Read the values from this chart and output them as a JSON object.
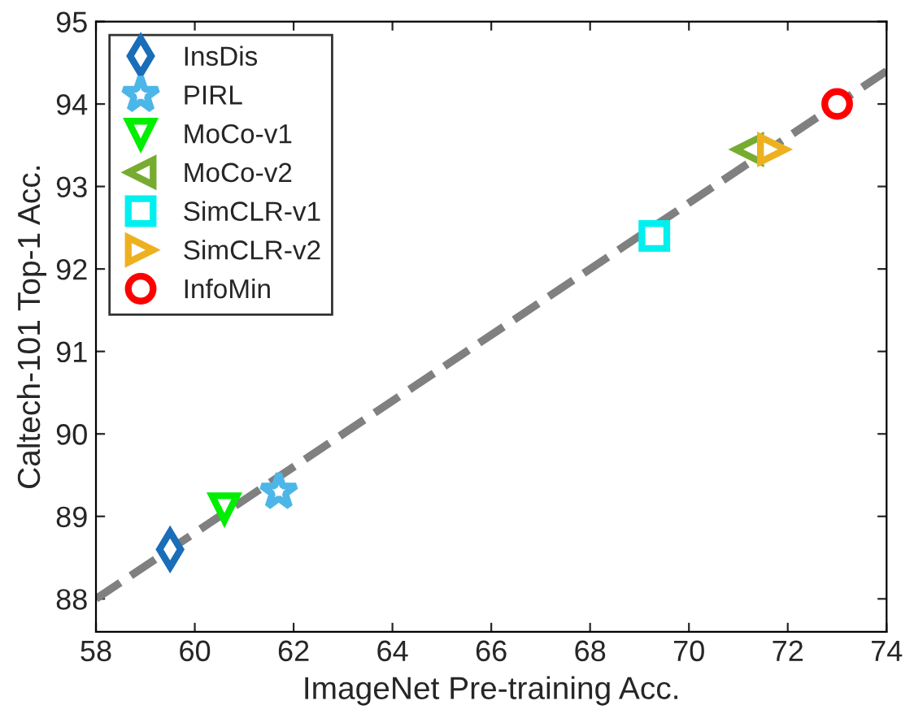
{
  "chart_data": {
    "type": "scatter",
    "xlabel": "ImageNet Pre-training Acc.",
    "ylabel": "Caltech-101 Top-1 Acc.",
    "xlim": [
      58,
      74
    ],
    "xticks": [
      58,
      60,
      62,
      64,
      66,
      68,
      70,
      72,
      74
    ],
    "ylim": [
      87.6,
      95
    ],
    "yticks": [
      88,
      89,
      90,
      91,
      92,
      93,
      94,
      95
    ],
    "grid": false,
    "legend": "top left",
    "series": [
      {
        "name": "InsDis",
        "color": "#1a6db8",
        "marker": "diamond",
        "x": [
          59.5
        ],
        "values": [
          88.6
        ]
      },
      {
        "name": "PIRL",
        "color": "#4db6e8",
        "marker": "star",
        "x": [
          61.7
        ],
        "values": [
          89.3
        ]
      },
      {
        "name": "MoCo-v1",
        "color": "#00ee00",
        "marker": "triangle-down",
        "x": [
          60.6
        ],
        "values": [
          89.1
        ]
      },
      {
        "name": "MoCo-v2",
        "color": "#77ac30",
        "marker": "triangle-left",
        "x": [
          71.2
        ],
        "values": [
          93.45
        ]
      },
      {
        "name": "SimCLR-v1",
        "color": "#00f0f0",
        "marker": "square",
        "x": [
          69.3
        ],
        "values": [
          92.4
        ]
      },
      {
        "name": "SimCLR-v2",
        "color": "#edb120",
        "marker": "triangle-right",
        "x": [
          71.7
        ],
        "values": [
          93.45
        ]
      },
      {
        "name": "InfoMin",
        "color": "#ff0000",
        "marker": "circle",
        "x": [
          73.0
        ],
        "values": [
          94.0
        ]
      },
      {
        "type": "line",
        "color": "#808080",
        "line_style": "dashed",
        "marker": "none",
        "x": [
          58,
          74
        ],
        "values": [
          88.0,
          94.4
        ]
      }
    ]
  }
}
